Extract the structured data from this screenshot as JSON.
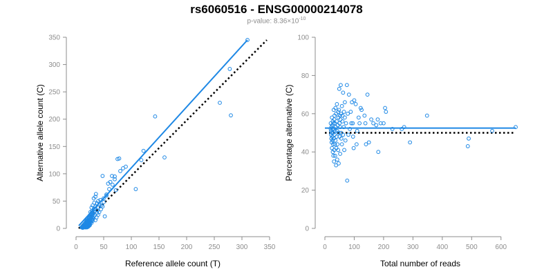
{
  "title": "rs6060516 - ENSG00000214078",
  "subtitle": {
    "prefix": "p-value: 8.36×10",
    "exponent": "-10"
  },
  "colors": {
    "points": "#1E88E5",
    "fit": "#1E88E5",
    "reference": "#000000",
    "axis": "#8c8c8c"
  },
  "chart_data": [
    {
      "type": "scatter",
      "xlabel": "Reference allele count (T)",
      "ylabel": "Alternative allele count (C)",
      "xlim": [
        0,
        350
      ],
      "ylim": [
        0,
        350
      ],
      "xticks": [
        "0",
        "50",
        "100",
        "150",
        "200",
        "250",
        "300",
        "350"
      ],
      "yticks": [
        "0",
        "50",
        "100",
        "150",
        "200",
        "250",
        "300",
        "350"
      ],
      "xtick_values": [
        0,
        50,
        100,
        150,
        200,
        250,
        300,
        350
      ],
      "ytick_values": [
        0,
        50,
        100,
        150,
        200,
        250,
        300,
        350
      ],
      "grid": false,
      "fit_line": {
        "x": [
          5,
          310
        ],
        "y": [
          5,
          345
        ]
      },
      "reference_line": {
        "x": [
          5,
          345
        ],
        "y": [
          0,
          345
        ]
      },
      "points": {
        "x": [
          310,
          278,
          280,
          260,
          143,
          160,
          122,
          118,
          108,
          90,
          85,
          80,
          78,
          75,
          72,
          70,
          70,
          66,
          65,
          62,
          60,
          58,
          55,
          55,
          52,
          50,
          50,
          48,
          48,
          46,
          45,
          44,
          42,
          42,
          40,
          40,
          40,
          39,
          38,
          38,
          37,
          36,
          35,
          35,
          35,
          34,
          34,
          33,
          33,
          32,
          32,
          32,
          31,
          31,
          30,
          30,
          30,
          30,
          30,
          29,
          29,
          29,
          28,
          28,
          28,
          28,
          28,
          27,
          27,
          27,
          26,
          26,
          26,
          26,
          25,
          25,
          25,
          25,
          25,
          24,
          24,
          24,
          24,
          24,
          23,
          23,
          23,
          23,
          22,
          22,
          22,
          22,
          22,
          21,
          21,
          21,
          21,
          20,
          20,
          20,
          20,
          20,
          19,
          19,
          19,
          19,
          18,
          18,
          18,
          18,
          17,
          17,
          17,
          17,
          16,
          16,
          16,
          15,
          15,
          15,
          14,
          14,
          13,
          13,
          12,
          12,
          11,
          10
        ],
        "y": [
          345,
          292,
          207,
          230,
          205,
          130,
          142,
          125,
          72,
          113,
          110,
          105,
          128,
          127,
          70,
          90,
          95,
          80,
          96,
          85,
          72,
          82,
          60,
          62,
          22,
          55,
          48,
          96,
          40,
          42,
          35,
          52,
          44,
          30,
          50,
          38,
          25,
          33,
          46,
          28,
          20,
          63,
          58,
          40,
          15,
          36,
          24,
          47,
          30,
          55,
          35,
          22,
          18,
          28,
          42,
          30,
          26,
          20,
          14,
          32,
          24,
          16,
          38,
          28,
          22,
          16,
          10,
          26,
          20,
          12,
          30,
          22,
          17,
          11,
          24,
          19,
          14,
          9,
          6,
          20,
          15,
          11,
          8,
          5,
          18,
          14,
          10,
          6,
          16,
          12,
          9,
          6,
          3,
          14,
          10,
          7,
          4,
          15,
          11,
          8,
          5,
          2,
          13,
          9,
          6,
          3,
          12,
          8,
          5,
          2,
          10,
          7,
          4,
          2,
          9,
          6,
          3,
          8,
          5,
          2,
          6,
          3,
          5,
          2,
          4,
          1,
          3,
          2
        ]
      }
    },
    {
      "type": "scatter",
      "xlabel": "Total number of reads",
      "ylabel": "Percentage alternative (C)",
      "xlim": [
        0,
        650
      ],
      "ylim": [
        0,
        100
      ],
      "xticks": [
        "0",
        "100",
        "200",
        "300",
        "400",
        "500",
        "600"
      ],
      "yticks": [
        "0",
        "20",
        "40",
        "60",
        "80",
        "100"
      ],
      "xtick_values": [
        0,
        100,
        200,
        300,
        400,
        500,
        600
      ],
      "ytick_values": [
        0,
        20,
        40,
        60,
        80,
        100
      ],
      "grid": false,
      "fit_line": {
        "x": [
          0,
          650
        ],
        "y": [
          52.5,
          52.5
        ]
      },
      "reference_line": {
        "x": [
          0,
          650
        ],
        "y": [
          50,
          50
        ]
      },
      "points": {
        "x": [
          650,
          570,
          490,
          487,
          348,
          290,
          270,
          262,
          230,
          208,
          205,
          200,
          190,
          182,
          180,
          175,
          165,
          158,
          150,
          145,
          140,
          138,
          135,
          125,
          122,
          118,
          115,
          110,
          108,
          105,
          100,
          98,
          96,
          95,
          92,
          90,
          88,
          85,
          82,
          80,
          78,
          76,
          75,
          72,
          70,
          68,
          68,
          66,
          65,
          64,
          62,
          62,
          60,
          60,
          58,
          58,
          56,
          55,
          55,
          54,
          53,
          52,
          52,
          51,
          50,
          50,
          49,
          48,
          47,
          47,
          46,
          45,
          45,
          44,
          43,
          42,
          42,
          41,
          40,
          40,
          39,
          38,
          38,
          37,
          36,
          36,
          35,
          35,
          34,
          34,
          33,
          33,
          32,
          32,
          31,
          31,
          30,
          30,
          29,
          29,
          28,
          28,
          27,
          27,
          26,
          26,
          25,
          25,
          24,
          24,
          23,
          23,
          22,
          22,
          21,
          21,
          20,
          20
        ],
        "y": [
          53,
          51,
          47,
          43,
          59,
          45,
          53,
          52,
          52,
          61,
          63,
          55,
          55,
          40,
          57,
          54,
          55,
          57,
          45,
          70,
          44,
          55,
          59,
          62,
          63,
          55,
          58,
          51,
          44,
          65,
          67,
          42,
          48,
          55,
          66,
          55,
          61,
          52,
          70,
          49,
          60,
          25,
          75,
          55,
          46,
          58,
          66,
          41,
          61,
          53,
          49,
          71,
          59,
          56,
          44,
          64,
          47,
          60,
          50,
          75,
          57,
          53,
          39,
          59,
          48,
          55,
          73,
          62,
          34,
          50,
          58,
          41,
          61,
          54,
          44,
          51,
          36,
          65,
          48,
          56,
          42,
          60,
          33,
          53,
          46,
          63,
          38,
          51,
          55,
          44,
          49,
          59,
          41,
          57,
          35,
          52,
          47,
          62,
          38,
          55,
          44,
          50,
          40,
          56,
          46,
          52,
          48,
          54,
          42,
          58,
          50,
          45,
          53,
          47,
          51,
          49,
          55,
          52
        ]
      }
    }
  ]
}
